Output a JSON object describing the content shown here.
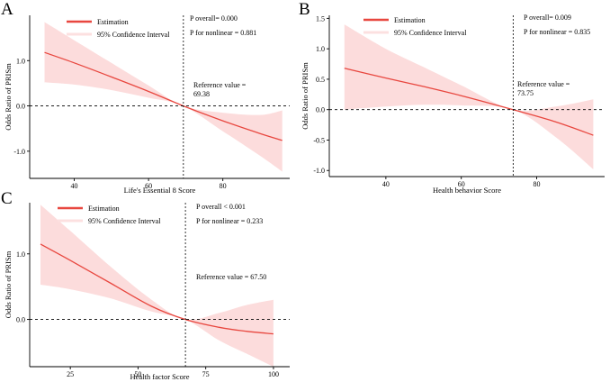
{
  "chart_data": [
    {
      "panel": "A",
      "type": "line",
      "xlabel": "Life's Essential 8 Score",
      "ylabel": "Odds Ratio of  PRISm",
      "xlim": [
        28,
        98
      ],
      "ylim": [
        -1.6,
        2.0
      ],
      "xticks": [
        40,
        60,
        80
      ],
      "yticks": [
        -1.0,
        0.0,
        1.0
      ],
      "ytick_labels": [
        "-1.0",
        "0.0",
        "1.0"
      ],
      "reference_x": 69.38,
      "reference_label": "Reference value =",
      "reference_value_text": "69.38",
      "legend": {
        "estimate": "Estimation",
        "ci": "95% Confidence Interval"
      },
      "stats": {
        "overall": "P  overall= 0.000",
        "nonlinear": "P for nonlinear = 0.881"
      },
      "series": [
        {
          "name": "Estimation",
          "x": [
            32,
            40,
            50,
            60,
            69.38,
            80,
            90,
            96
          ],
          "y": [
            1.18,
            0.95,
            0.64,
            0.32,
            0.0,
            -0.33,
            -0.61,
            -0.76
          ]
        },
        {
          "name": "95% CI lower",
          "x": [
            32,
            40,
            50,
            60,
            69.38,
            80,
            90,
            96
          ],
          "y": [
            0.52,
            0.47,
            0.35,
            0.18,
            0.0,
            -0.56,
            -1.1,
            -1.45
          ]
        },
        {
          "name": "95% CI upper",
          "x": [
            32,
            40,
            50,
            60,
            69.38,
            80,
            90,
            96
          ],
          "y": [
            1.85,
            1.45,
            0.95,
            0.45,
            0.0,
            -0.15,
            -0.2,
            -0.1
          ]
        }
      ]
    },
    {
      "panel": "B",
      "type": "line",
      "xlabel": "Health behavior Score",
      "ylabel": "Odds Ratio of  PRISm",
      "xlim": [
        25,
        98
      ],
      "ylim": [
        -1.1,
        1.55
      ],
      "xticks": [
        40,
        60,
        80
      ],
      "yticks": [
        -1.0,
        -0.5,
        0.0,
        0.5,
        1.0,
        1.5
      ],
      "ytick_labels": [
        "-1.0",
        "-0.5",
        "0.0",
        "0.5",
        "1.0",
        "1.5"
      ],
      "reference_x": 73.75,
      "reference_label": "Reference value =",
      "reference_value_text": "73.75",
      "legend": {
        "estimate": "Estimation",
        "ci": "95% Confidence Interval"
      },
      "stats": {
        "overall": "P  overall= 0.009",
        "nonlinear": "P for nonlinear = 0.835"
      },
      "series": [
        {
          "name": "Estimation",
          "x": [
            29,
            40,
            50,
            60,
            73.75,
            85,
            95
          ],
          "y": [
            0.68,
            0.52,
            0.38,
            0.23,
            0.0,
            -0.2,
            -0.42
          ]
        },
        {
          "name": "95% CI lower",
          "x": [
            29,
            40,
            50,
            60,
            73.75,
            85,
            95
          ],
          "y": [
            0.0,
            0.05,
            0.08,
            0.07,
            0.0,
            -0.45,
            -0.98
          ]
        },
        {
          "name": "95% CI upper",
          "x": [
            29,
            40,
            50,
            60,
            73.75,
            85,
            95
          ],
          "y": [
            1.4,
            1.0,
            0.7,
            0.4,
            0.0,
            0.05,
            0.17
          ]
        }
      ]
    },
    {
      "panel": "C",
      "type": "line",
      "xlabel": "Health factor Score",
      "ylabel": "Odds Ratio of  PRISm",
      "xlim": [
        10,
        106
      ],
      "ylim": [
        -0.72,
        1.78
      ],
      "xticks": [
        25,
        50,
        75,
        100
      ],
      "yticks": [
        0.0,
        1.0
      ],
      "ytick_labels": [
        "0.0",
        "1.0"
      ],
      "reference_x": 67.5,
      "reference_label": "Reference value = 67.50",
      "reference_value_text": "",
      "legend": {
        "estimate": "Estimation",
        "ci": "95% Confidence Interval"
      },
      "stats": {
        "overall": "P  overall < 0.001",
        "nonlinear": "P for nonlinear = 0.233"
      },
      "series": [
        {
          "name": "Estimation",
          "x": [
            14,
            25,
            40,
            55,
            67.5,
            80,
            90,
            100
          ],
          "y": [
            1.15,
            0.9,
            0.55,
            0.2,
            0.0,
            -0.12,
            -0.18,
            -0.22
          ]
        },
        {
          "name": "95% CI lower",
          "x": [
            14,
            25,
            40,
            55,
            67.5,
            80,
            90,
            100
          ],
          "y": [
            0.53,
            0.46,
            0.32,
            0.12,
            0.0,
            -0.32,
            -0.52,
            -0.72
          ]
        },
        {
          "name": "95% CI upper",
          "x": [
            14,
            25,
            40,
            55,
            67.5,
            80,
            90,
            100
          ],
          "y": [
            1.75,
            1.35,
            0.8,
            0.3,
            0.0,
            0.1,
            0.22,
            0.3
          ]
        }
      ]
    }
  ],
  "colors": {
    "line": "#e8473f",
    "band": "#fcdcdc",
    "legend_ci": "#fce0e0",
    "axis": "#000000"
  }
}
